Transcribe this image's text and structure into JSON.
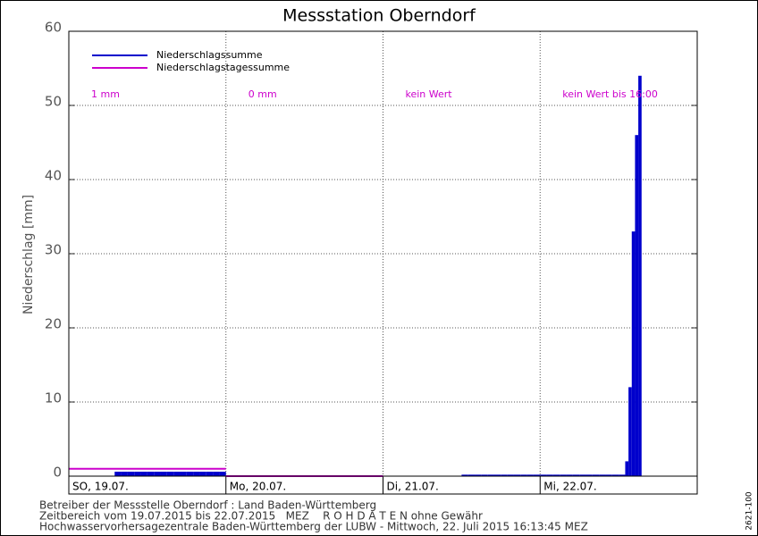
{
  "chart_data": {
    "type": "bar",
    "title": "Messstation Oberndorf",
    "y_label": "Niederschlag [mm]",
    "xlim": [
      0,
      96
    ],
    "xticks": [
      {
        "value": 0,
        "label": "SO, 19.07."
      },
      {
        "value": 24,
        "label": "Mo, 20.07."
      },
      {
        "value": 48,
        "label": "Di, 21.07."
      },
      {
        "value": 72,
        "label": "Mi, 22.07."
      }
    ],
    "ylim": [
      0,
      60
    ],
    "yticks": [
      0,
      10,
      20,
      30,
      40,
      50,
      60
    ],
    "grid": true,
    "legend_position": "upper left",
    "series": [
      {
        "name": "Niederschlagssumme",
        "color": "#0000cc",
        "x": [
          7,
          8,
          9,
          10,
          11,
          12,
          13,
          14,
          15,
          16,
          17,
          18,
          19,
          20,
          21,
          22,
          23,
          60,
          61,
          62,
          63,
          64,
          65,
          66,
          67,
          68,
          69,
          70,
          71,
          72,
          73,
          74,
          75,
          76,
          77,
          78,
          79,
          80,
          81,
          82,
          83,
          84,
          85,
          85.5,
          86,
          86.5,
          87
        ],
        "values": [
          0.6,
          0.6,
          0.6,
          0.6,
          0.6,
          0.6,
          0.6,
          0.6,
          0.6,
          0.6,
          0.6,
          0.6,
          0.6,
          0.6,
          0.6,
          0.6,
          0.6,
          0.2,
          0.2,
          0.2,
          0.2,
          0.2,
          0.2,
          0.2,
          0.2,
          0.2,
          0.2,
          0.2,
          0.2,
          0.2,
          0.2,
          0.2,
          0.2,
          0.2,
          0.2,
          0.2,
          0.2,
          0.2,
          0.2,
          0.2,
          0.2,
          0.2,
          2,
          12,
          33,
          46,
          54
        ]
      },
      {
        "name": "Niederschlagstagessumme",
        "color": "#cc00cc",
        "x": [
          0,
          24,
          48,
          72
        ],
        "values": [
          1,
          0,
          null,
          null
        ],
        "value_labels": [
          "1 mm",
          "0 mm",
          "kein Wert",
          "kein Wert bis 16:00"
        ]
      }
    ]
  },
  "footer": [
    "Betreiber der Messstelle Oberndorf : Land Baden-Württemberg",
    "Zeitbereich vom 19.07.2015 bis 22.07.2015   MEZ    R O H D A T E N ohne Gewähr",
    "Hochwasservorhersagezentrale Baden-Württemberg der LUBW - Mittwoch, 22. Juli 2015 16:13:45 MEZ"
  ],
  "code": "2621-100"
}
